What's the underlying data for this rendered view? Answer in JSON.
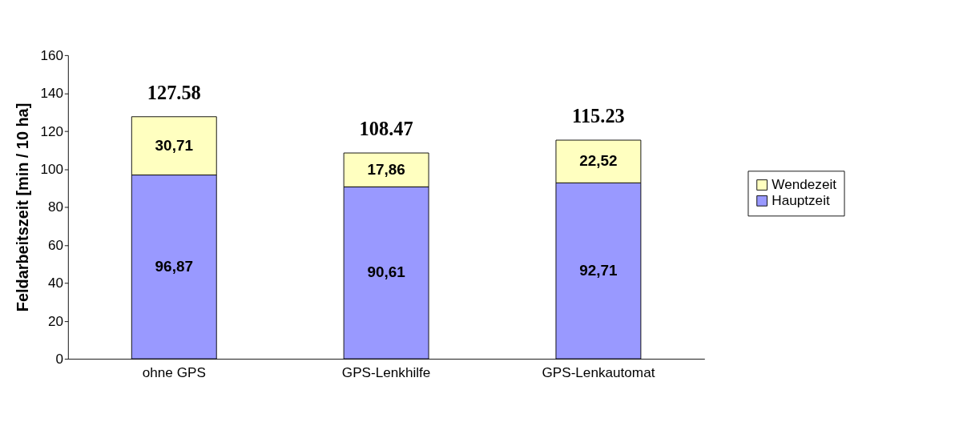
{
  "chart_data": {
    "type": "bar",
    "stacked": true,
    "ylabel": "Feldarbeitszeit [min / 10 ha]",
    "categories": [
      "ohne GPS",
      "GPS-Lenkhilfe",
      "GPS-Lenkautomat"
    ],
    "series": [
      {
        "name": "Hauptzeit",
        "color": "#9999ff",
        "values": [
          96.87,
          90.61,
          92.71
        ],
        "value_labels": [
          "96,87",
          "90,61",
          "92,71"
        ]
      },
      {
        "name": "Wendezeit",
        "color": "#ffffc0",
        "values": [
          30.71,
          17.86,
          22.52
        ],
        "value_labels": [
          "30,71",
          "17,86",
          "22,52"
        ]
      }
    ],
    "totals": [
      "127.58",
      "108.47",
      "115.23"
    ],
    "ylim": [
      0,
      160
    ],
    "yticks": [
      0,
      20,
      40,
      60,
      80,
      100,
      120,
      140,
      160
    ],
    "grid": false,
    "legend": "right"
  }
}
